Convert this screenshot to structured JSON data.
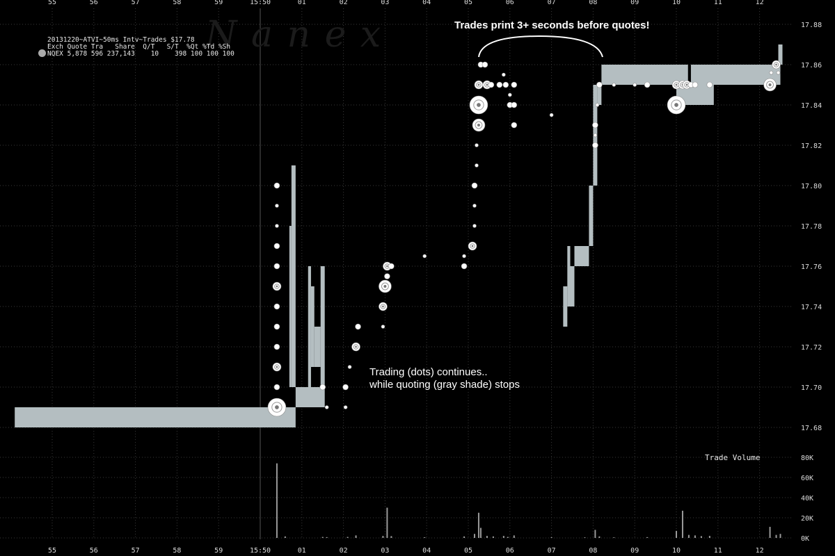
{
  "header": {
    "title": "20131220~ATVI~50ms Intv~Trades $17.78",
    "columns": "Exch Quote Tra   Share  Q/T   S/T  %Qt %Td %Sh",
    "row": "NQEX 5,878 596 237,143    10    398 100 100 100"
  },
  "watermark": "N a n e x",
  "annotations": {
    "quotes_note": "Trades print 3+ seconds before quotes!",
    "trading_note_1": "Trading (dots) continues..",
    "trading_note_2": "while quoting (gray shade) stops"
  },
  "colors": {
    "background": "#000000",
    "quote_band": "#b4bec1",
    "trade_dot": "#ffffff",
    "grid": "#3a3a3a",
    "volume_bar": "#9a9a9a"
  },
  "chart_data": {
    "type": "scatter",
    "time_tick_labels": [
      "55",
      "56",
      "57",
      "58",
      "59",
      "15:50",
      "01",
      "02",
      "03",
      "04",
      "05",
      "06",
      "07",
      "08",
      "09",
      "10",
      "11",
      "12"
    ],
    "price_axis": {
      "ylim": [
        17.67,
        17.89
      ],
      "tick_labels": [
        "17.68",
        "17.70",
        "17.72",
        "17.74",
        "17.76",
        "17.78",
        "17.80",
        "17.82",
        "17.84",
        "17.86",
        "17.88"
      ]
    },
    "volume_axis": {
      "label": "Trade Volume",
      "ylim": [
        0,
        80000
      ],
      "tick_labels": [
        "0K",
        "20K",
        "40K",
        "60K",
        "80K"
      ]
    },
    "quote_band": [
      {
        "t0": -5.9,
        "t1": 0.85,
        "bid": 17.68,
        "ask": 17.69
      },
      {
        "t0": 0.85,
        "t1": 1.55,
        "bid": 17.69,
        "ask": 17.7
      },
      {
        "t0": 0.7,
        "t1": 0.75,
        "bid": 17.7,
        "ask": 17.78
      },
      {
        "t0": 0.75,
        "t1": 0.85,
        "bid": 17.7,
        "ask": 17.81
      },
      {
        "t0": 1.15,
        "t1": 1.22,
        "bid": 17.7,
        "ask": 17.76
      },
      {
        "t0": 1.22,
        "t1": 1.3,
        "bid": 17.71,
        "ask": 17.75
      },
      {
        "t0": 1.3,
        "t1": 1.45,
        "bid": 17.71,
        "ask": 17.73
      },
      {
        "t0": 1.45,
        "t1": 1.55,
        "bid": 17.7,
        "ask": 17.76
      },
      {
        "t0": 7.28,
        "t1": 7.38,
        "bid": 17.73,
        "ask": 17.75
      },
      {
        "t0": 7.38,
        "t1": 7.45,
        "bid": 17.74,
        "ask": 17.77
      },
      {
        "t0": 7.45,
        "t1": 7.55,
        "bid": 17.74,
        "ask": 17.76
      },
      {
        "t0": 7.55,
        "t1": 7.9,
        "bid": 17.76,
        "ask": 17.77
      },
      {
        "t0": 7.9,
        "t1": 8.0,
        "bid": 17.77,
        "ask": 17.8
      },
      {
        "t0": 8.0,
        "t1": 8.1,
        "bid": 17.8,
        "ask": 17.85
      },
      {
        "t0": 8.1,
        "t1": 8.2,
        "bid": 17.84,
        "ask": 17.85
      },
      {
        "t0": 8.2,
        "t1": 10.0,
        "bid": 17.85,
        "ask": 17.86
      },
      {
        "t0": 10.0,
        "t1": 10.9,
        "bid": 17.84,
        "ask": 17.85
      },
      {
        "t0": 10.0,
        "t1": 10.28,
        "bid": 17.85,
        "ask": 17.86
      },
      {
        "t0": 10.35,
        "t1": 12.5,
        "bid": 17.85,
        "ask": 17.86
      },
      {
        "t0": 12.45,
        "t1": 12.55,
        "bid": 17.86,
        "ask": 17.87
      }
    ],
    "trades": [
      {
        "t": 0.4,
        "p": 17.69,
        "size": "xl"
      },
      {
        "t": 0.4,
        "p": 17.7,
        "size": "s"
      },
      {
        "t": 0.4,
        "p": 17.71,
        "size": "m"
      },
      {
        "t": 0.4,
        "p": 17.72,
        "size": "s"
      },
      {
        "t": 0.4,
        "p": 17.73,
        "size": "s"
      },
      {
        "t": 0.4,
        "p": 17.74,
        "size": "s"
      },
      {
        "t": 0.4,
        "p": 17.75,
        "size": "m"
      },
      {
        "t": 0.4,
        "p": 17.76,
        "size": "s"
      },
      {
        "t": 0.4,
        "p": 17.77,
        "size": "s"
      },
      {
        "t": 0.4,
        "p": 17.78,
        "size": "xs"
      },
      {
        "t": 0.4,
        "p": 17.79,
        "size": "xs"
      },
      {
        "t": 0.4,
        "p": 17.8,
        "size": "s"
      },
      {
        "t": 1.5,
        "p": 17.7,
        "size": "s"
      },
      {
        "t": 1.6,
        "p": 17.69,
        "size": "xs"
      },
      {
        "t": 2.05,
        "p": 17.69,
        "size": "xs"
      },
      {
        "t": 2.05,
        "p": 17.7,
        "size": "s"
      },
      {
        "t": 2.15,
        "p": 17.71,
        "size": "xs"
      },
      {
        "t": 2.3,
        "p": 17.72,
        "size": "m"
      },
      {
        "t": 2.35,
        "p": 17.73,
        "size": "s"
      },
      {
        "t": 2.95,
        "p": 17.73,
        "size": "xs"
      },
      {
        "t": 2.95,
        "p": 17.74,
        "size": "m"
      },
      {
        "t": 3.0,
        "p": 17.75,
        "size": "l"
      },
      {
        "t": 3.05,
        "p": 17.755,
        "size": "s"
      },
      {
        "t": 3.05,
        "p": 17.76,
        "size": "m"
      },
      {
        "t": 3.15,
        "p": 17.76,
        "size": "s"
      },
      {
        "t": 3.95,
        "p": 17.765,
        "size": "xs"
      },
      {
        "t": 4.9,
        "p": 17.76,
        "size": "s"
      },
      {
        "t": 4.9,
        "p": 17.765,
        "size": "xs"
      },
      {
        "t": 5.1,
        "p": 17.77,
        "size": "m"
      },
      {
        "t": 5.15,
        "p": 17.78,
        "size": "xs"
      },
      {
        "t": 5.15,
        "p": 17.79,
        "size": "xs"
      },
      {
        "t": 5.15,
        "p": 17.8,
        "size": "s"
      },
      {
        "t": 5.2,
        "p": 17.81,
        "size": "xs"
      },
      {
        "t": 5.2,
        "p": 17.82,
        "size": "xs"
      },
      {
        "t": 5.25,
        "p": 17.83,
        "size": "l"
      },
      {
        "t": 5.25,
        "p": 17.84,
        "size": "xl"
      },
      {
        "t": 5.25,
        "p": 17.85,
        "size": "m"
      },
      {
        "t": 5.3,
        "p": 17.86,
        "size": "s"
      },
      {
        "t": 5.4,
        "p": 17.86,
        "size": "s"
      },
      {
        "t": 5.45,
        "p": 17.85,
        "size": "m"
      },
      {
        "t": 5.55,
        "p": 17.85,
        "size": "s"
      },
      {
        "t": 5.75,
        "p": 17.85,
        "size": "s"
      },
      {
        "t": 5.85,
        "p": 17.855,
        "size": "xs"
      },
      {
        "t": 5.9,
        "p": 17.85,
        "size": "s"
      },
      {
        "t": 6.0,
        "p": 17.845,
        "size": "xs"
      },
      {
        "t": 6.0,
        "p": 17.84,
        "size": "s"
      },
      {
        "t": 6.1,
        "p": 17.84,
        "size": "s"
      },
      {
        "t": 6.1,
        "p": 17.85,
        "size": "s"
      },
      {
        "t": 6.1,
        "p": 17.83,
        "size": "s"
      },
      {
        "t": 7.0,
        "p": 17.835,
        "size": "xs"
      },
      {
        "t": 8.05,
        "p": 17.83,
        "size": "s"
      },
      {
        "t": 8.05,
        "p": 17.82,
        "size": "s"
      },
      {
        "t": 8.05,
        "p": 17.825,
        "size": "xs"
      },
      {
        "t": 8.1,
        "p": 17.84,
        "size": "xs"
      },
      {
        "t": 8.15,
        "p": 17.85,
        "size": "s"
      },
      {
        "t": 8.5,
        "p": 17.85,
        "size": "xs"
      },
      {
        "t": 9.0,
        "p": 17.85,
        "size": "xs"
      },
      {
        "t": 9.3,
        "p": 17.85,
        "size": "s"
      },
      {
        "t": 10.0,
        "p": 17.84,
        "size": "xl"
      },
      {
        "t": 10.0,
        "p": 17.85,
        "size": "m"
      },
      {
        "t": 10.15,
        "p": 17.85,
        "size": "m"
      },
      {
        "t": 10.25,
        "p": 17.85,
        "size": "m"
      },
      {
        "t": 10.35,
        "p": 17.85,
        "size": "s"
      },
      {
        "t": 10.45,
        "p": 17.85,
        "size": "s"
      },
      {
        "t": 10.8,
        "p": 17.85,
        "size": "s"
      },
      {
        "t": 12.25,
        "p": 17.85,
        "size": "l"
      },
      {
        "t": 12.28,
        "p": 17.856,
        "size": "xs"
      },
      {
        "t": 12.4,
        "p": 17.86,
        "size": "m"
      },
      {
        "t": 12.45,
        "p": 17.856,
        "size": "xs"
      }
    ],
    "volume": [
      {
        "t": 0.4,
        "v": 74000
      },
      {
        "t": 0.6,
        "v": 1500
      },
      {
        "t": 1.5,
        "v": 1000
      },
      {
        "t": 1.6,
        "v": 800
      },
      {
        "t": 2.1,
        "v": 1000
      },
      {
        "t": 2.3,
        "v": 2500
      },
      {
        "t": 2.95,
        "v": 2000
      },
      {
        "t": 3.05,
        "v": 30000
      },
      {
        "t": 3.15,
        "v": 1800
      },
      {
        "t": 3.95,
        "v": 700
      },
      {
        "t": 4.9,
        "v": 1500
      },
      {
        "t": 5.15,
        "v": 4000
      },
      {
        "t": 5.25,
        "v": 25000
      },
      {
        "t": 5.3,
        "v": 10000
      },
      {
        "t": 5.45,
        "v": 2000
      },
      {
        "t": 5.6,
        "v": 1500
      },
      {
        "t": 5.85,
        "v": 2000
      },
      {
        "t": 5.95,
        "v": 1000
      },
      {
        "t": 6.1,
        "v": 2500
      },
      {
        "t": 7.0,
        "v": 700
      },
      {
        "t": 7.8,
        "v": 600
      },
      {
        "t": 8.05,
        "v": 8000
      },
      {
        "t": 8.15,
        "v": 1500
      },
      {
        "t": 8.5,
        "v": 600
      },
      {
        "t": 9.3,
        "v": 800
      },
      {
        "t": 10.0,
        "v": 7000
      },
      {
        "t": 10.15,
        "v": 27000
      },
      {
        "t": 10.3,
        "v": 3000
      },
      {
        "t": 10.45,
        "v": 2500
      },
      {
        "t": 10.6,
        "v": 1800
      },
      {
        "t": 10.8,
        "v": 2000
      },
      {
        "t": 12.25,
        "v": 11000
      },
      {
        "t": 12.4,
        "v": 3000
      },
      {
        "t": 12.5,
        "v": 4000
      }
    ]
  }
}
